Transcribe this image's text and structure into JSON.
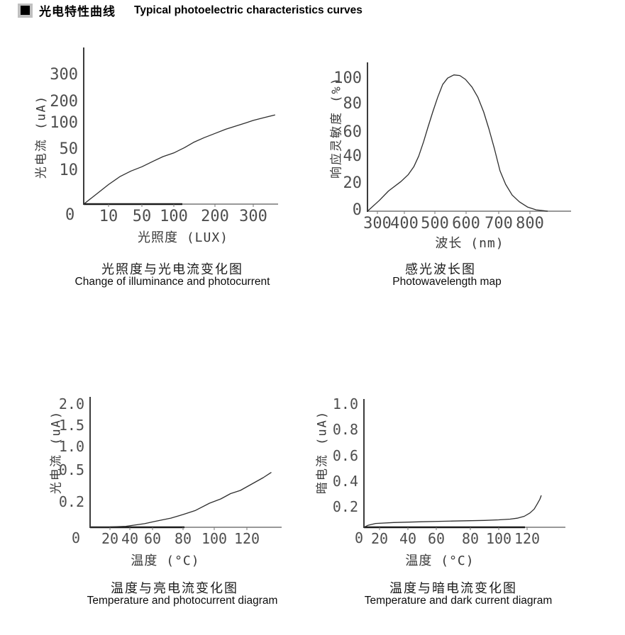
{
  "header": {
    "marker": "■",
    "title_zh": "光电特性曲线",
    "title_en": "Typical photoelectric characteristics curves"
  },
  "chart_data": [
    {
      "type": "line",
      "id": "illuminance-photocurrent",
      "title_zh": "光照度与光电流变化图",
      "title_en": "Change of illuminance and photocurrent",
      "xlabel": "光照度 (LUX)",
      "ylabel": "光电流 (uA)",
      "x_ticks": [
        "10",
        "50",
        "100",
        "200",
        "300"
      ],
      "y_ticks": [
        "300",
        "200",
        "100",
        "50",
        "10"
      ],
      "origin_label": "0",
      "x_range": [
        0,
        360
      ],
      "y_range": [
        0,
        350
      ],
      "grid": false,
      "legend": "none",
      "points": [
        [
          0,
          0
        ],
        [
          5,
          3
        ],
        [
          10,
          6
        ],
        [
          24,
          8.5
        ],
        [
          37,
          11
        ],
        [
          50,
          19
        ],
        [
          67,
          29
        ],
        [
          83,
          38
        ],
        [
          100,
          45
        ],
        [
          126,
          55
        ],
        [
          148,
          65
        ],
        [
          174,
          74
        ],
        [
          200,
          82
        ],
        [
          228,
          90
        ],
        [
          258,
          97
        ],
        [
          280,
          105
        ],
        [
          300,
          117
        ],
        [
          328,
          130
        ],
        [
          357,
          143
        ]
      ]
    },
    {
      "type": "line",
      "id": "spectral-response",
      "title_zh": "感光波长图",
      "title_en": "Photowavelength map",
      "xlabel": "波长 (nm)",
      "ylabel": "响应灵敏度 (%)",
      "x_ticks": [
        "300",
        "400",
        "500",
        "600",
        "700",
        "800"
      ],
      "y_ticks": [
        "100",
        "80",
        "60",
        "40",
        "20",
        "0"
      ],
      "origin_label": "",
      "x_range": [
        270,
        870
      ],
      "y_range": [
        0,
        110
      ],
      "grid": false,
      "legend": "none",
      "points": [
        [
          270,
          0
        ],
        [
          307,
          8
        ],
        [
          341,
          15
        ],
        [
          387,
          22
        ],
        [
          412,
          27
        ],
        [
          431,
          33
        ],
        [
          447,
          41
        ],
        [
          463,
          53
        ],
        [
          477,
          64
        ],
        [
          493,
          75
        ],
        [
          509,
          86
        ],
        [
          525,
          96
        ],
        [
          541,
          101
        ],
        [
          561,
          103.5
        ],
        [
          580,
          103
        ],
        [
          598,
          100
        ],
        [
          618,
          94
        ],
        [
          636,
          86
        ],
        [
          654,
          75
        ],
        [
          670,
          63
        ],
        [
          687,
          47
        ],
        [
          704,
          30
        ],
        [
          722,
          20
        ],
        [
          743,
          12
        ],
        [
          766,
          7
        ],
        [
          793,
          3
        ],
        [
          820,
          1
        ],
        [
          857,
          0
        ]
      ]
    },
    {
      "type": "line",
      "id": "temperature-photocurrent",
      "title_zh": "温度与亮电流变化图",
      "title_en": "Temperature and photocurrent diagram",
      "xlabel": "温度 (°C)",
      "ylabel": "光电流 (uA)",
      "x_ticks": [
        "20",
        "40",
        "60",
        "80",
        "100",
        "120"
      ],
      "y_ticks": [
        "2.0",
        "1.5",
        "1.0",
        "0.5",
        "0.2"
      ],
      "origin_label": "0",
      "x_range": [
        0,
        135
      ],
      "y_range": [
        0,
        2.0
      ],
      "grid": false,
      "legend": "none",
      "points": [
        [
          0,
          0
        ],
        [
          20,
          0.003
        ],
        [
          36,
          0.008
        ],
        [
          53,
          0.03
        ],
        [
          62,
          0.05
        ],
        [
          72,
          0.076
        ],
        [
          80,
          0.106
        ],
        [
          88,
          0.14
        ],
        [
          97,
          0.2
        ],
        [
          104,
          0.24
        ],
        [
          110,
          0.29
        ],
        [
          116,
          0.32
        ],
        [
          123,
          0.38
        ],
        [
          130,
          0.44
        ],
        [
          135,
          0.49
        ]
      ]
    },
    {
      "type": "line",
      "id": "temperature-darkcurrent",
      "title_zh": "温度与暗电流变化图",
      "title_en": "Temperature and dark current diagram",
      "xlabel": "温度 (°C)",
      "ylabel": "暗电流 (uA)",
      "x_ticks": [
        "20",
        "40",
        "60",
        "80",
        "100",
        "120"
      ],
      "y_ticks": [
        "1.0",
        "0.8",
        "0.6",
        "0.4",
        "0.2"
      ],
      "origin_label": "0",
      "x_range": [
        0,
        130
      ],
      "y_range": [
        0,
        1.0
      ],
      "grid": false,
      "legend": "none",
      "points": [
        [
          0,
          0
        ],
        [
          5,
          0.02
        ],
        [
          15,
          0.04
        ],
        [
          30,
          0.05
        ],
        [
          50,
          0.058
        ],
        [
          70,
          0.065
        ],
        [
          90,
          0.072
        ],
        [
          100,
          0.078
        ],
        [
          108,
          0.085
        ],
        [
          113,
          0.095
        ],
        [
          118,
          0.115
        ],
        [
          122,
          0.15
        ],
        [
          125,
          0.19
        ],
        [
          127,
          0.23
        ],
        [
          129,
          0.27
        ],
        [
          130,
          0.3
        ]
      ]
    }
  ]
}
